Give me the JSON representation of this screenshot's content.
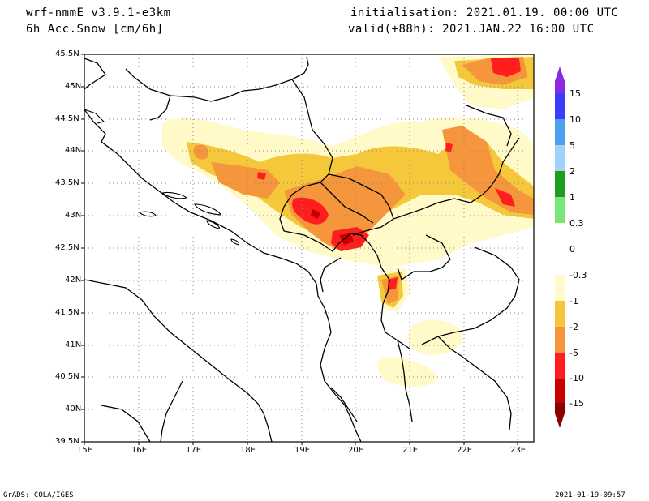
{
  "header": {
    "model": "wrf-nmmE_v3.9.1-e3km",
    "variable": "6h Acc.Snow [cm/6h]",
    "init": "initialisation: 2021.01.19.  00:00 UTC",
    "valid": "valid(+88h): 2021.JAN.22 16:00 UTC"
  },
  "map": {
    "lat_labels": [
      "45.5N",
      "45N",
      "44.5N",
      "44N",
      "43.5N",
      "43N",
      "42.5N",
      "42N",
      "41.5N",
      "41N",
      "40.5N",
      "40N",
      "39.5N"
    ],
    "lon_labels": [
      "15E",
      "16E",
      "17E",
      "18E",
      "19E",
      "20E",
      "21E",
      "22E",
      "23E"
    ],
    "lon_range": [
      15,
      23.3
    ],
    "lat_range": [
      39.5,
      45.5
    ]
  },
  "legend": {
    "labels": [
      "15",
      "10",
      "5",
      "2",
      "1",
      "0.3",
      "0",
      "-0.3",
      "-1",
      "-2",
      "-5",
      "-10",
      "-15"
    ],
    "colors": {
      "c15": "#8a2be2",
      "c10": "#3c3cff",
      "c5": "#4aa0f0",
      "c2": "#a0d2fa",
      "c1": "#1e9e1e",
      "c03": "#78e678",
      "c0": "#ffffff",
      "cm03": "#fffac8",
      "cm1": "#f5c83c",
      "cm2": "#f5963c",
      "cm5": "#ff1e1e",
      "cm10": "#c80000",
      "cm15": "#8c0000"
    }
  },
  "footer": {
    "left": "GrADS: COLA/IGES",
    "right": "2021-01-19-09:57"
  }
}
